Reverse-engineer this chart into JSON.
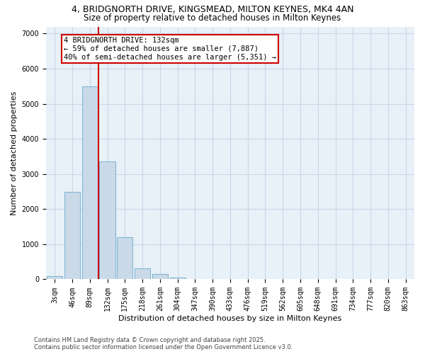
{
  "title_line1": "4, BRIDGNORTH DRIVE, KINGSMEAD, MILTON KEYNES, MK4 4AN",
  "title_line2": "Size of property relative to detached houses in Milton Keynes",
  "xlabel": "Distribution of detached houses by size in Milton Keynes",
  "ylabel": "Number of detached properties",
  "bar_labels": [
    "3sqm",
    "46sqm",
    "89sqm",
    "132sqm",
    "175sqm",
    "218sqm",
    "261sqm",
    "304sqm",
    "347sqm",
    "390sqm",
    "433sqm",
    "476sqm",
    "519sqm",
    "562sqm",
    "605sqm",
    "648sqm",
    "691sqm",
    "734sqm",
    "777sqm",
    "820sqm",
    "863sqm"
  ],
  "bar_values": [
    100,
    2500,
    5500,
    3350,
    1200,
    310,
    150,
    55,
    10,
    2,
    1,
    0,
    0,
    0,
    0,
    0,
    0,
    0,
    0,
    0,
    0
  ],
  "bar_color": "#c9d9e8",
  "bar_edge_color": "#7ab4d0",
  "property_line_idx": 2.5,
  "property_label": "4 BRIDGNORTH DRIVE: 132sqm",
  "annotation_line2": "← 59% of detached houses are smaller (7,887)",
  "annotation_line3": "40% of semi-detached houses are larger (5,351) →",
  "line_color": "#cc0000",
  "box_edge_color": "#cc0000",
  "ylim": [
    0,
    7200
  ],
  "yticks": [
    0,
    1000,
    2000,
    3000,
    4000,
    5000,
    6000,
    7000
  ],
  "grid_color": "#c8d8e8",
  "background_color": "#e8f0f8",
  "footer_line1": "Contains HM Land Registry data © Crown copyright and database right 2025.",
  "footer_line2": "Contains public sector information licensed under the Open Government Licence v3.0.",
  "title_fontsize": 9,
  "title2_fontsize": 8.5,
  "axis_label_fontsize": 8,
  "tick_fontsize": 7,
  "annotation_fontsize": 7.5,
  "footer_fontsize": 6
}
